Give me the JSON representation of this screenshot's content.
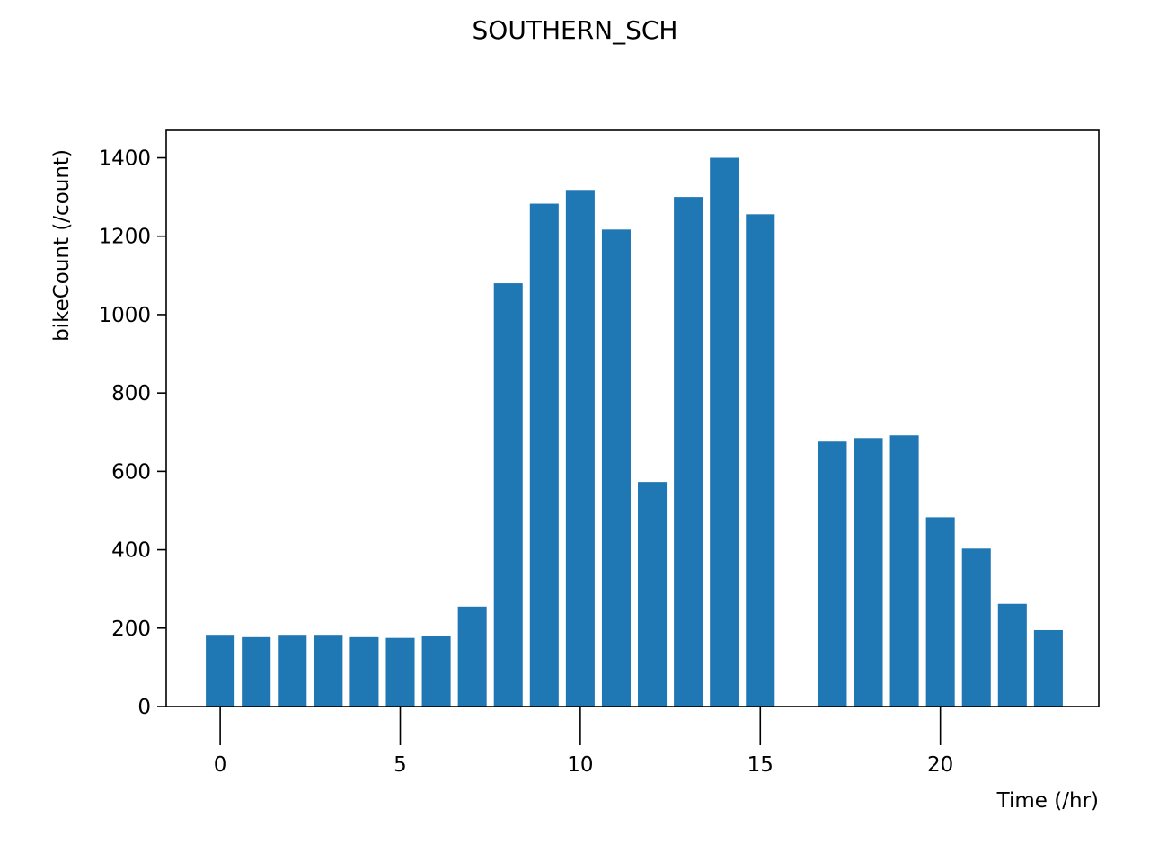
{
  "chart_data": {
    "type": "bar",
    "title": "SOUTHERN_SCH",
    "xlabel": "Time (/hr)",
    "ylabel": "bikeCount (/count)",
    "x": [
      0,
      1,
      2,
      3,
      4,
      5,
      6,
      7,
      8,
      9,
      10,
      11,
      12,
      13,
      14,
      15,
      17,
      18,
      19,
      20,
      21,
      22,
      23
    ],
    "values": [
      183,
      177,
      183,
      183,
      177,
      175,
      181,
      255,
      1080,
      1283,
      1318,
      1217,
      573,
      1300,
      1400,
      1256,
      676,
      685,
      692,
      483,
      403,
      262,
      195
    ],
    "xlim": [
      -1.5,
      24.4
    ],
    "ylim": [
      0,
      1470
    ],
    "xticks": [
      "0",
      "5",
      "10",
      "15",
      "20"
    ],
    "yticks": [
      "0",
      "200",
      "400",
      "600",
      "800",
      "1000",
      "1200",
      "1400"
    ],
    "grid": false,
    "bar_color": "#1f77b4"
  }
}
